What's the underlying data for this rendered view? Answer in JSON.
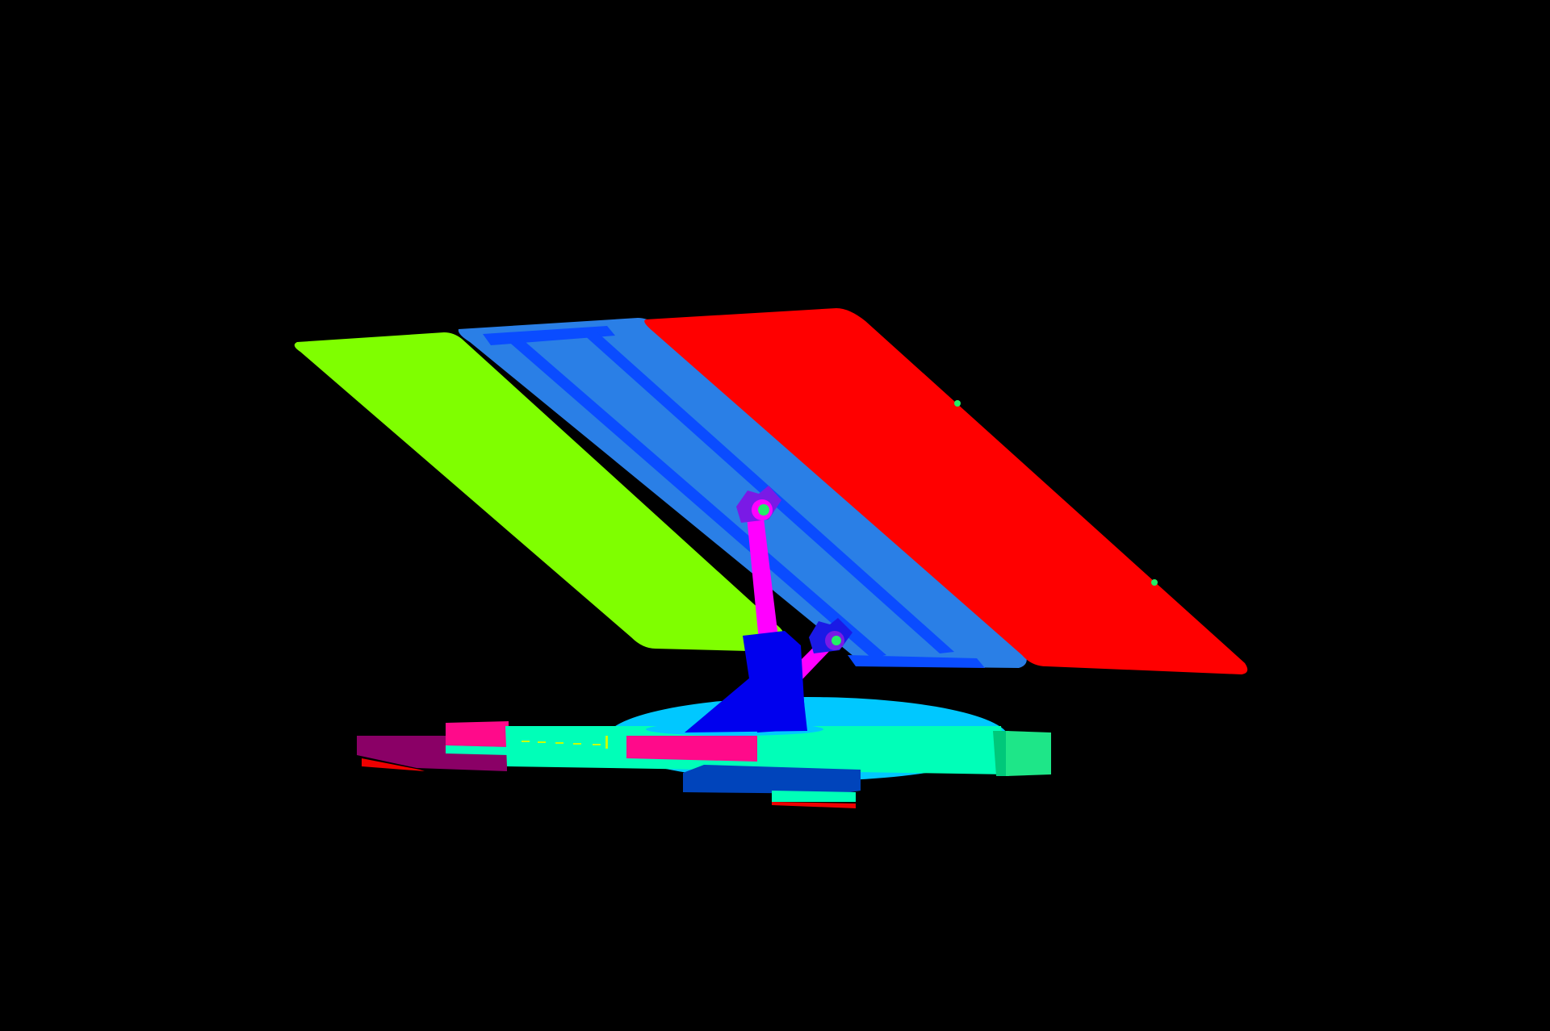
{
  "scene": {
    "subject": "segmentation-render-solar-tracker",
    "colors": {
      "background": "#000000",
      "panel_left": "#7fff00",
      "panel_middle": "#2a7fe6",
      "panel_middle_rail": "#0a4cff",
      "panel_right": "#ff0000",
      "actuator_arm": "#ff00ff",
      "actuator_joint": "#7a1ae6",
      "joint_pin": "#22ee66",
      "mast": "#0000ee",
      "mast_bracket": "#1a1ae6",
      "base_disc": "#00c8ff",
      "base_plate": "#00ffb8",
      "base_plate_edge": "#00c87a",
      "base_block_pink": "#ff0a8a",
      "base_foot_purple": "#8a0066",
      "base_foot_blue": "#0044bb",
      "base_foot_red": "#ee0000",
      "base_side_block": "#1ee688",
      "base_side_block_dark": "#008a55",
      "base_slot": "#c8ff00"
    }
  }
}
